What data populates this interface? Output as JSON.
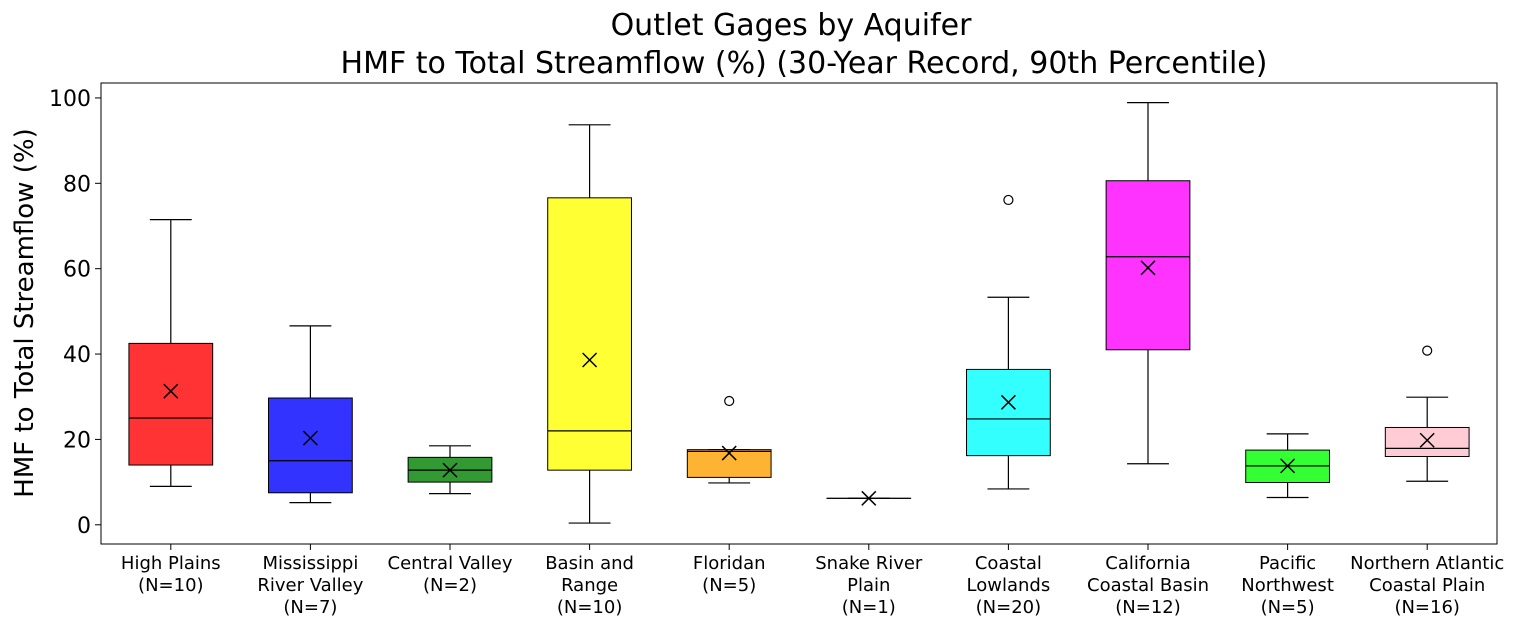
{
  "chart_data": {
    "type": "box",
    "title": [
      "Outlet Gages by Aquifer",
      "HMF to Total Streamflow (%) (30-Year Record, 90th Percentile)"
    ],
    "ylabel": "HMF to Total Streamflow (%)",
    "xlabel": "",
    "ylim": [
      -4.5,
      103.5
    ],
    "yticks": [
      0,
      20,
      40,
      60,
      80,
      100
    ],
    "grid": false,
    "series": [
      {
        "label_lines": [
          "High Plains",
          "(N=10)"
        ],
        "color": "#ff3333",
        "q1": 14,
        "median": 25,
        "q3": 42.5,
        "whisker_low": 9,
        "whisker_high": 71.5,
        "mean": 31.3,
        "outliers": []
      },
      {
        "label_lines": [
          "Mississippi",
          "River Valley",
          "(N=7)"
        ],
        "color": "#3333ff",
        "q1": 7.5,
        "median": 15,
        "q3": 29.7,
        "whisker_low": 5.2,
        "whisker_high": 46.6,
        "mean": 20.3,
        "outliers": []
      },
      {
        "label_lines": [
          "Central Valley",
          "(N=2)"
        ],
        "color": "#339933",
        "q1": 10,
        "median": 12.8,
        "q3": 15.8,
        "whisker_low": 7.3,
        "whisker_high": 18.5,
        "mean": 12.8,
        "outliers": []
      },
      {
        "label_lines": [
          "Basin and",
          "Range",
          "(N=10)"
        ],
        "color": "#ffff33",
        "q1": 12.8,
        "median": 22,
        "q3": 76.6,
        "whisker_low": 0.4,
        "whisker_high": 93.7,
        "mean": 38.6,
        "outliers": []
      },
      {
        "label_lines": [
          "Floridan",
          "(N=5)"
        ],
        "color": "#ffb333",
        "q1": 11.1,
        "median": 17.2,
        "q3": 17.6,
        "whisker_low": 9.8,
        "whisker_high": 17.6,
        "mean": 16.8,
        "outliers": [
          29
        ]
      },
      {
        "label_lines": [
          "Snake River",
          "Plain",
          "(N=1)"
        ],
        "color": "#808080",
        "q1": 6.2,
        "median": 6.2,
        "q3": 6.2,
        "whisker_low": 6.2,
        "whisker_high": 6.2,
        "mean": 6.2,
        "outliers": []
      },
      {
        "label_lines": [
          "Coastal",
          "Lowlands",
          "(N=20)"
        ],
        "color": "#33ffff",
        "q1": 16.2,
        "median": 24.8,
        "q3": 36.4,
        "whisker_low": 8.4,
        "whisker_high": 53.3,
        "mean": 28.7,
        "outliers": [
          76.1
        ]
      },
      {
        "label_lines": [
          "California",
          "Coastal Basin",
          "(N=12)"
        ],
        "color": "#ff33ff",
        "q1": 41,
        "median": 62.8,
        "q3": 80.6,
        "whisker_low": 14.3,
        "whisker_high": 98.9,
        "mean": 60.2,
        "outliers": []
      },
      {
        "label_lines": [
          "Pacific",
          "Northwest",
          "(N=5)"
        ],
        "color": "#33ff33",
        "q1": 9.9,
        "median": 13.8,
        "q3": 17.5,
        "whisker_low": 6.4,
        "whisker_high": 21.3,
        "mean": 13.8,
        "outliers": []
      },
      {
        "label_lines": [
          "Northern Atlantic",
          "Coastal Plain",
          "(N=16)"
        ],
        "color": "#ffccd5",
        "q1": 16,
        "median": 17.9,
        "q3": 22.8,
        "whisker_low": 10.2,
        "whisker_high": 29.9,
        "mean": 19.8,
        "outliers": [
          40.8
        ]
      }
    ]
  }
}
